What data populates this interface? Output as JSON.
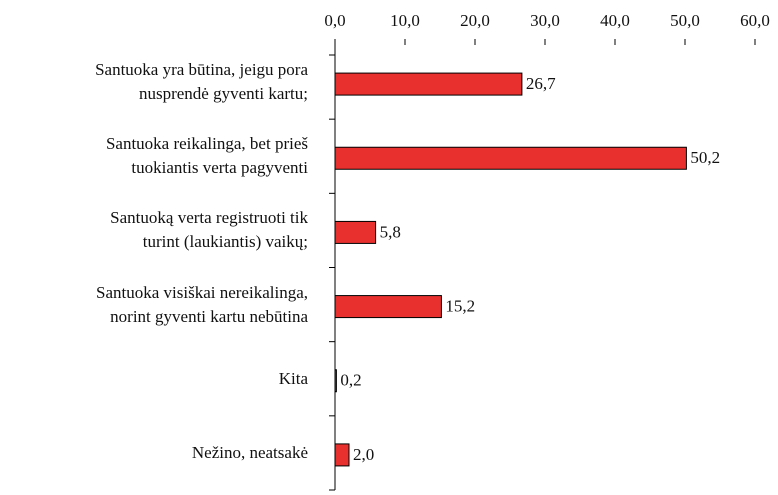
{
  "chart_data": {
    "type": "barh",
    "categories": [
      "Santuoka yra būtina, jeigu pora\nnusprendė gyventi kartu;",
      "Santuoka reikalinga, bet prieš\ntuokiantis verta pagyventi",
      "Santuoką verta registruoti tik\nturint (laukiantis) vaikų;",
      "Santuoka visiškai nereikalinga,\nnorint gyventi kartu nebūtina",
      "Kita",
      "Nežino, neatsakė"
    ],
    "values": [
      26.7,
      50.2,
      5.8,
      15.2,
      0.2,
      2.0
    ],
    "value_labels": [
      "26,7",
      "50,2",
      "5,8",
      "15,2",
      "0,2",
      "2,0"
    ],
    "color": "#e8312f",
    "xlim": [
      0,
      60
    ],
    "xticks": [
      {
        "value": 0,
        "label": "0,0"
      },
      {
        "value": 10,
        "label": "10,0"
      },
      {
        "value": 20,
        "label": "20,0"
      },
      {
        "value": 30,
        "label": "30,0"
      },
      {
        "value": 40,
        "label": "40,0"
      },
      {
        "value": 50,
        "label": "50,0"
      },
      {
        "value": 60,
        "label": "60,0"
      }
    ]
  }
}
